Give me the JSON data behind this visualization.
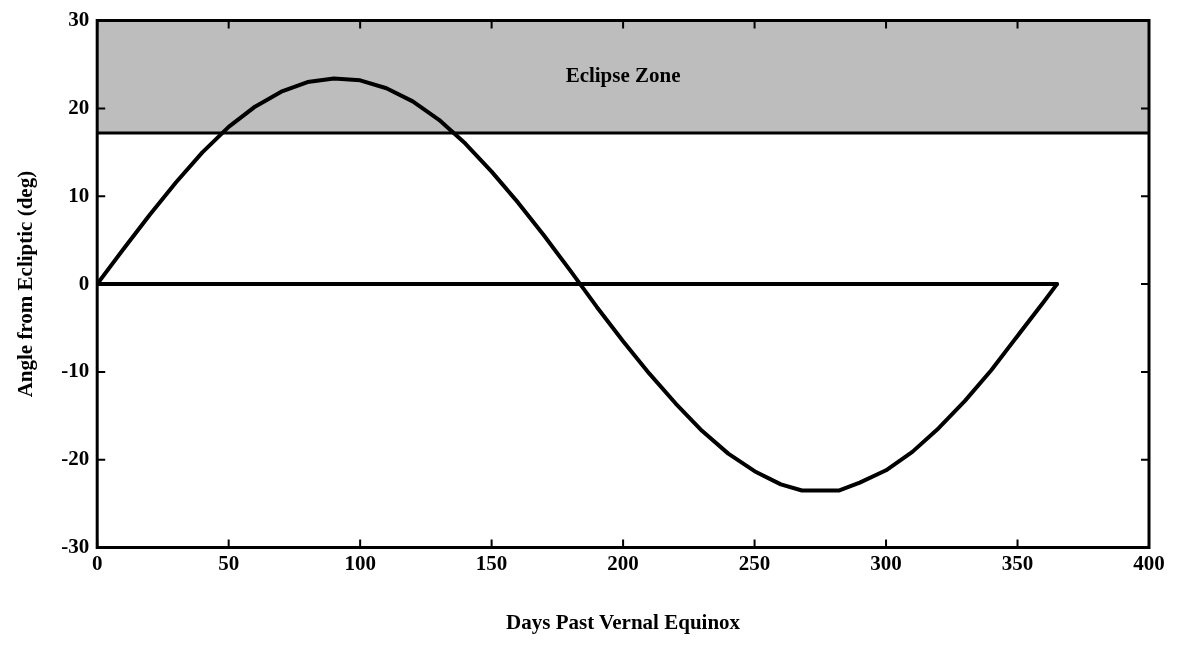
{
  "chart_data": {
    "type": "line",
    "xlabel": "Days Past Vernal Equinox",
    "ylabel": "Angle from Ecliptic (deg)",
    "xlim": [
      0,
      400
    ],
    "xticks": [
      0,
      50,
      100,
      150,
      200,
      250,
      300,
      350,
      400
    ],
    "ylim": [
      -30,
      30
    ],
    "yticks": [
      -30,
      -20,
      -10,
      0,
      10,
      20,
      30
    ],
    "grid": false,
    "legend": false,
    "marker": "none",
    "line_style": "solid",
    "ref_lines": [
      {
        "axis": "y",
        "value": 17.2,
        "color": "#000000"
      }
    ],
    "bands": [
      {
        "axis": "y",
        "from": 17.2,
        "to": 30,
        "label": "Eclipse Zone",
        "color": "#bdbdbd"
      }
    ],
    "series": [
      {
        "color": "#000000",
        "x": [
          0,
          10,
          20,
          30,
          40,
          50,
          60,
          70,
          80,
          90,
          100,
          110,
          120,
          130,
          140,
          150,
          160,
          170,
          180,
          190,
          200,
          210,
          220,
          230,
          240,
          250,
          260,
          268,
          282,
          290,
          300,
          310,
          320,
          330,
          340,
          350,
          360,
          365
        ],
        "values": [
          0,
          4.0,
          7.9,
          11.6,
          15.0,
          17.9,
          20.2,
          21.9,
          23.0,
          23.4,
          23.2,
          22.3,
          20.8,
          18.7,
          16.0,
          12.8,
          9.3,
          5.5,
          1.5,
          -2.6,
          -6.5,
          -10.2,
          -13.6,
          -16.7,
          -19.3,
          -21.3,
          -22.8,
          -23.5,
          -23.5,
          -22.6,
          -21.2,
          -19.1,
          -16.4,
          -13.3,
          -9.8,
          -5.9,
          -2.0,
          0
        ]
      },
      {
        "color": "#000000",
        "x": [
          0,
          365
        ],
        "values": [
          0,
          0
        ]
      }
    ]
  }
}
